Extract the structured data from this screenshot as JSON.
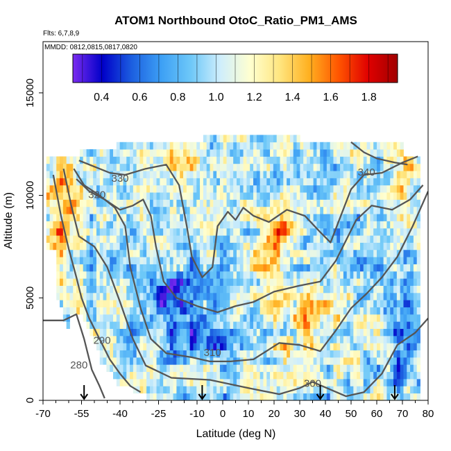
{
  "chart_data": {
    "type": "heatmap",
    "title": "ATOM1 Northbound OtoC_Ratio_PM1_AMS",
    "annotations": {
      "flights": "Flts: 6,7,8,9",
      "dates": "MMDD: 0812,0815,0817,0820"
    },
    "xlabel": "Latitude (deg N)",
    "ylabel": "Altitude (m)",
    "xlim": [
      -70,
      80
    ],
    "ylim": [
      0,
      17500
    ],
    "x_ticks": [
      -70,
      -55,
      -40,
      -25,
      -10,
      0,
      10,
      20,
      30,
      40,
      50,
      60,
      70,
      80
    ],
    "x_tick_labels": [
      "-70",
      "-55",
      "-40",
      "-25",
      "-10",
      "0",
      "10",
      "20",
      "30",
      "40",
      "50",
      "60",
      "70",
      "80"
    ],
    "y_ticks": [
      0,
      5000,
      10000,
      15000
    ],
    "y_tick_labels": [
      "0",
      "5000",
      "10000",
      "15000"
    ],
    "colorbar": {
      "range": [
        0.25,
        1.95
      ],
      "ticks": [
        0.4,
        0.6,
        0.8,
        1.0,
        1.2,
        1.4,
        1.6,
        1.8
      ],
      "tick_labels": [
        "0.4",
        "0.6",
        "0.8",
        "1.0",
        "1.2",
        "1.4",
        "1.6",
        "1.8"
      ],
      "colors": [
        "#7b2cf0",
        "#0000c8",
        "#1c5fe0",
        "#3da0f5",
        "#6ec8f8",
        "#cfeefc",
        "#ffffd0",
        "#ffe680",
        "#ffb020",
        "#ff5500",
        "#e00000",
        "#a00000"
      ]
    },
    "arrows_latitude": [
      -54,
      -8,
      38,
      67
    ],
    "contours": [
      {
        "level": "280",
        "points": [
          [
            -70,
            3900
          ],
          [
            -62,
            3900
          ],
          [
            -57,
            4200
          ],
          [
            -54,
            3000
          ],
          [
            -51,
            1500
          ],
          [
            -48,
            700
          ],
          [
            -46,
            100
          ]
        ]
      },
      {
        "level": "290",
        "points": [
          [
            -66,
            11000
          ],
          [
            -63,
            9000
          ],
          [
            -60,
            7400
          ],
          [
            -57,
            6000
          ],
          [
            -55,
            5000
          ],
          [
            -52,
            4000
          ],
          [
            -48,
            3000
          ],
          [
            -44,
            2000
          ],
          [
            -40,
            1300
          ],
          [
            -36,
            700
          ],
          [
            -32,
            400
          ]
        ]
      },
      {
        "level": "300",
        "points": [
          [
            -62,
            11300
          ],
          [
            -59,
            9500
          ],
          [
            -56,
            8000
          ],
          [
            -50,
            7500
          ],
          [
            -45,
            6500
          ],
          [
            -40,
            4800
          ],
          [
            -35,
            3000
          ],
          [
            -30,
            1700
          ],
          [
            -20,
            1100
          ],
          [
            -5,
            1000
          ],
          [
            10,
            600
          ],
          [
            22,
            300
          ],
          [
            30,
            600
          ],
          [
            35,
            900
          ],
          [
            48,
            200
          ],
          [
            55,
            400
          ],
          [
            62,
            1300
          ],
          [
            68,
            2700
          ],
          [
            75,
            3300
          ],
          [
            80,
            4000
          ]
        ]
      },
      {
        "level": "310",
        "points": [
          [
            -58,
            11300
          ],
          [
            -54,
            10500
          ],
          [
            -48,
            10000
          ],
          [
            -42,
            9400
          ],
          [
            -38,
            8500
          ],
          [
            -36,
            6500
          ],
          [
            -32,
            4500
          ],
          [
            -28,
            3000
          ],
          [
            -22,
            2300
          ],
          [
            -12,
            2100
          ],
          [
            -5,
            1900
          ],
          [
            3,
            1900
          ],
          [
            12,
            2000
          ],
          [
            22,
            2800
          ],
          [
            30,
            2700
          ],
          [
            38,
            2400
          ],
          [
            44,
            3400
          ],
          [
            50,
            4500
          ],
          [
            56,
            5200
          ],
          [
            62,
            6000
          ],
          [
            68,
            7000
          ],
          [
            74,
            8500
          ],
          [
            80,
            10200
          ]
        ]
      },
      {
        "level": "320",
        "points": [
          [
            -57,
            10800
          ],
          [
            -52,
            10200
          ],
          [
            -46,
            9800
          ],
          [
            -40,
            9300
          ],
          [
            -35,
            9500
          ],
          [
            -31,
            9800
          ],
          [
            -28,
            9000
          ],
          [
            -26,
            7500
          ],
          [
            -23,
            5800
          ],
          [
            -18,
            5000
          ],
          [
            -10,
            4600
          ],
          [
            -2,
            4300
          ],
          [
            5,
            4600
          ],
          [
            12,
            4800
          ],
          [
            20,
            5300
          ],
          [
            30,
            5600
          ],
          [
            38,
            5800
          ],
          [
            44,
            6800
          ],
          [
            48,
            7800
          ],
          [
            52,
            8800
          ],
          [
            58,
            9500
          ],
          [
            66,
            9300
          ],
          [
            73,
            9800
          ],
          [
            78,
            10500
          ]
        ]
      },
      {
        "level": "330",
        "points": [
          [
            -56,
            11700
          ],
          [
            -50,
            11400
          ],
          [
            -44,
            11100
          ],
          [
            -38,
            11000
          ],
          [
            -30,
            11300
          ],
          [
            -22,
            11500
          ],
          [
            -17,
            10500
          ],
          [
            -14,
            8500
          ],
          [
            -12,
            7000
          ],
          [
            -8,
            6000
          ],
          [
            -4,
            6500
          ],
          [
            -2,
            8500
          ],
          [
            2,
            9200
          ],
          [
            5,
            8800
          ],
          [
            8,
            9400
          ],
          [
            12,
            9000
          ],
          [
            18,
            8700
          ],
          [
            25,
            9300
          ],
          [
            32,
            9000
          ],
          [
            38,
            8200
          ],
          [
            42,
            7700
          ],
          [
            46,
            9000
          ],
          [
            50,
            10300
          ],
          [
            55,
            11000
          ],
          [
            62,
            11100
          ],
          [
            70,
            11600
          ],
          [
            76,
            11900
          ]
        ]
      },
      {
        "level": "340",
        "points": [
          [
            50,
            12600
          ],
          [
            55,
            12100
          ],
          [
            60,
            11800
          ],
          [
            67,
            11600
          ],
          [
            72,
            11500
          ]
        ]
      }
    ]
  }
}
